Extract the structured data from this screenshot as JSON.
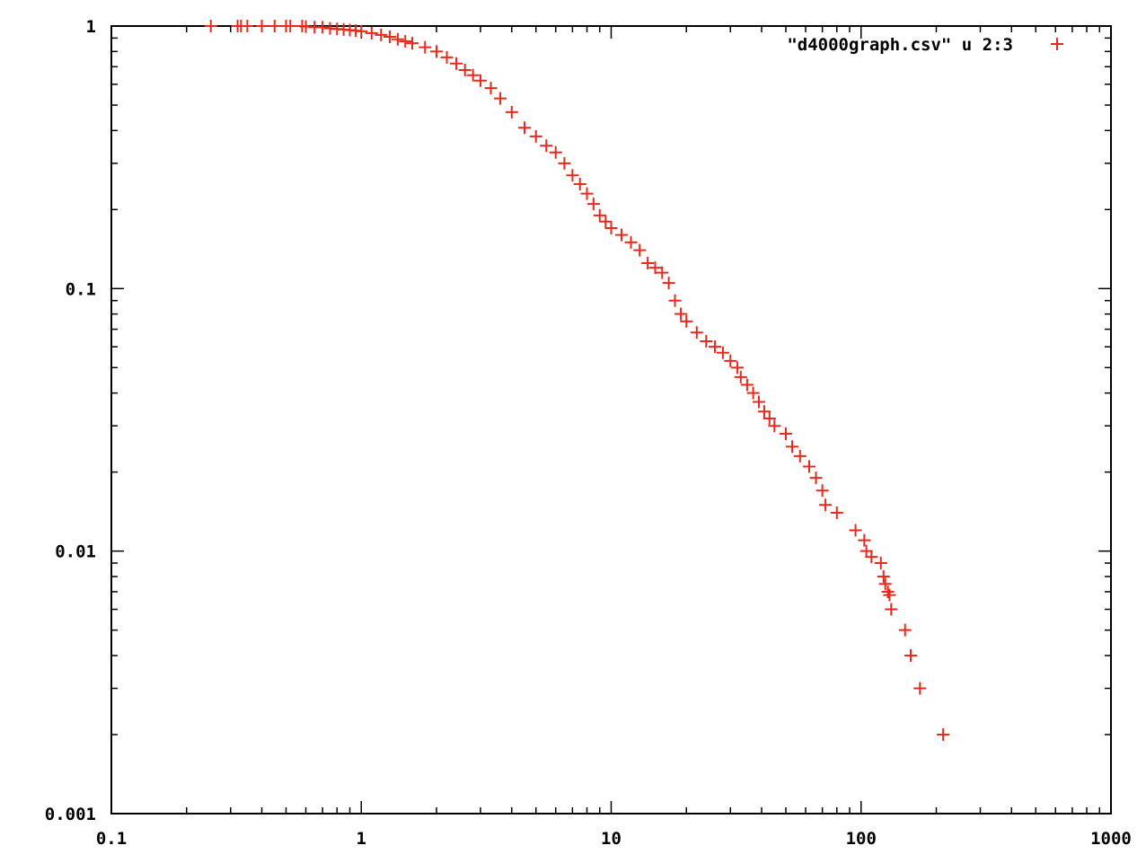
{
  "chart_data": {
    "type": "scatter",
    "title": "",
    "xlabel": "",
    "ylabel": "",
    "xscale": "log",
    "yscale": "log",
    "xlim": [
      0.1,
      1000
    ],
    "ylim": [
      0.001,
      1
    ],
    "grid": false,
    "legend_position": "top-right",
    "x_ticks": [
      {
        "value": 0.1,
        "label": "0.1"
      },
      {
        "value": 1,
        "label": "1"
      },
      {
        "value": 10,
        "label": "10"
      },
      {
        "value": 100,
        "label": "100"
      },
      {
        "value": 1000,
        "label": "1000"
      }
    ],
    "y_ticks": [
      {
        "value": 1,
        "label": "1"
      },
      {
        "value": 0.1,
        "label": "0.1"
      },
      {
        "value": 0.01,
        "label": "0.01"
      },
      {
        "value": 0.001,
        "label": "0.001"
      }
    ],
    "series": [
      {
        "name": "\"d4000graph.csv\" u 2:3",
        "color": "#e8291c",
        "marker": "plus",
        "points": [
          [
            0.25,
            1.0
          ],
          [
            0.32,
            1.0
          ],
          [
            0.33,
            1.0
          ],
          [
            0.35,
            1.0
          ],
          [
            0.4,
            1.0
          ],
          [
            0.45,
            1.0
          ],
          [
            0.5,
            1.0
          ],
          [
            0.52,
            1.0
          ],
          [
            0.58,
            1.0
          ],
          [
            0.6,
            0.995
          ],
          [
            0.65,
            0.99
          ],
          [
            0.7,
            0.99
          ],
          [
            0.75,
            0.98
          ],
          [
            0.8,
            0.975
          ],
          [
            0.85,
            0.97
          ],
          [
            0.9,
            0.965
          ],
          [
            0.95,
            0.96
          ],
          [
            1.0,
            0.955
          ],
          [
            1.1,
            0.94
          ],
          [
            1.2,
            0.925
          ],
          [
            1.3,
            0.91
          ],
          [
            1.4,
            0.89
          ],
          [
            1.5,
            0.875
          ],
          [
            1.6,
            0.86
          ],
          [
            1.8,
            0.83
          ],
          [
            2.0,
            0.8
          ],
          [
            2.2,
            0.76
          ],
          [
            2.4,
            0.72
          ],
          [
            2.6,
            0.68
          ],
          [
            2.8,
            0.65
          ],
          [
            3.0,
            0.62
          ],
          [
            3.3,
            0.58
          ],
          [
            3.6,
            0.53
          ],
          [
            4.0,
            0.47
          ],
          [
            4.5,
            0.41
          ],
          [
            5.0,
            0.38
          ],
          [
            5.5,
            0.35
          ],
          [
            6.0,
            0.33
          ],
          [
            6.5,
            0.3
          ],
          [
            7.0,
            0.27
          ],
          [
            7.5,
            0.25
          ],
          [
            8.0,
            0.23
          ],
          [
            8.5,
            0.21
          ],
          [
            9.0,
            0.19
          ],
          [
            9.5,
            0.18
          ],
          [
            10.0,
            0.17
          ],
          [
            11.0,
            0.16
          ],
          [
            12.0,
            0.15
          ],
          [
            13.0,
            0.14
          ],
          [
            14.0,
            0.125
          ],
          [
            15.0,
            0.12
          ],
          [
            16.0,
            0.115
          ],
          [
            17.0,
            0.105
          ],
          [
            18.0,
            0.09
          ],
          [
            19.0,
            0.08
          ],
          [
            20.0,
            0.075
          ],
          [
            22.0,
            0.068
          ],
          [
            24.0,
            0.063
          ],
          [
            26.0,
            0.06
          ],
          [
            28.0,
            0.057
          ],
          [
            30.0,
            0.053
          ],
          [
            32.0,
            0.05
          ],
          [
            33.0,
            0.046
          ],
          [
            35.0,
            0.043
          ],
          [
            37.0,
            0.04
          ],
          [
            39.0,
            0.037
          ],
          [
            41.0,
            0.034
          ],
          [
            43.0,
            0.032
          ],
          [
            45.0,
            0.03
          ],
          [
            50.0,
            0.028
          ],
          [
            53.0,
            0.025
          ],
          [
            57.0,
            0.023
          ],
          [
            62.0,
            0.021
          ],
          [
            66.0,
            0.019
          ],
          [
            70.0,
            0.017
          ],
          [
            72.0,
            0.015
          ],
          [
            80.0,
            0.014
          ],
          [
            95.0,
            0.012
          ],
          [
            103.0,
            0.011
          ],
          [
            105.0,
            0.01
          ],
          [
            110.0,
            0.0095
          ],
          [
            120.0,
            0.009
          ],
          [
            123.0,
            0.008
          ],
          [
            125.0,
            0.0075
          ],
          [
            128.0,
            0.007
          ],
          [
            130.0,
            0.0068
          ],
          [
            132.0,
            0.006
          ],
          [
            150.0,
            0.005
          ],
          [
            158.0,
            0.004
          ],
          [
            172.0,
            0.003
          ],
          [
            213.0,
            0.002
          ]
        ]
      }
    ]
  }
}
